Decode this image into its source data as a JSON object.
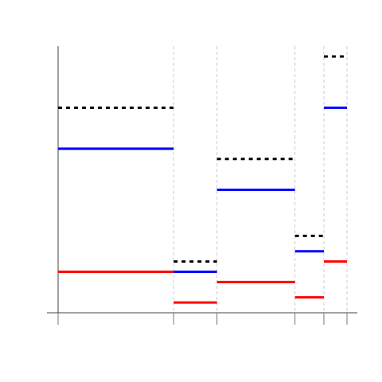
{
  "chart_data": {
    "type": "line",
    "step": true,
    "title": "",
    "xlabel": "",
    "ylabel": "",
    "grid": "vertical-dashed",
    "legend": "none",
    "xlim": [
      0,
      10.3
    ],
    "ylim": [
      0,
      10.3
    ],
    "breaks": [
      0,
      4,
      5.5,
      8.2,
      9.2,
      10
    ],
    "series": [
      {
        "color": "#000000",
        "style": "dotted",
        "values": [
          8,
          2,
          6,
          3,
          10
        ]
      },
      {
        "color": "#0000ff",
        "style": "solid",
        "values": [
          6.4,
          1.6,
          4.8,
          2.4,
          8
        ]
      },
      {
        "color": "#ff0000",
        "style": "solid",
        "values": [
          1.6,
          0.4,
          1.2,
          0.6,
          2
        ]
      }
    ]
  }
}
